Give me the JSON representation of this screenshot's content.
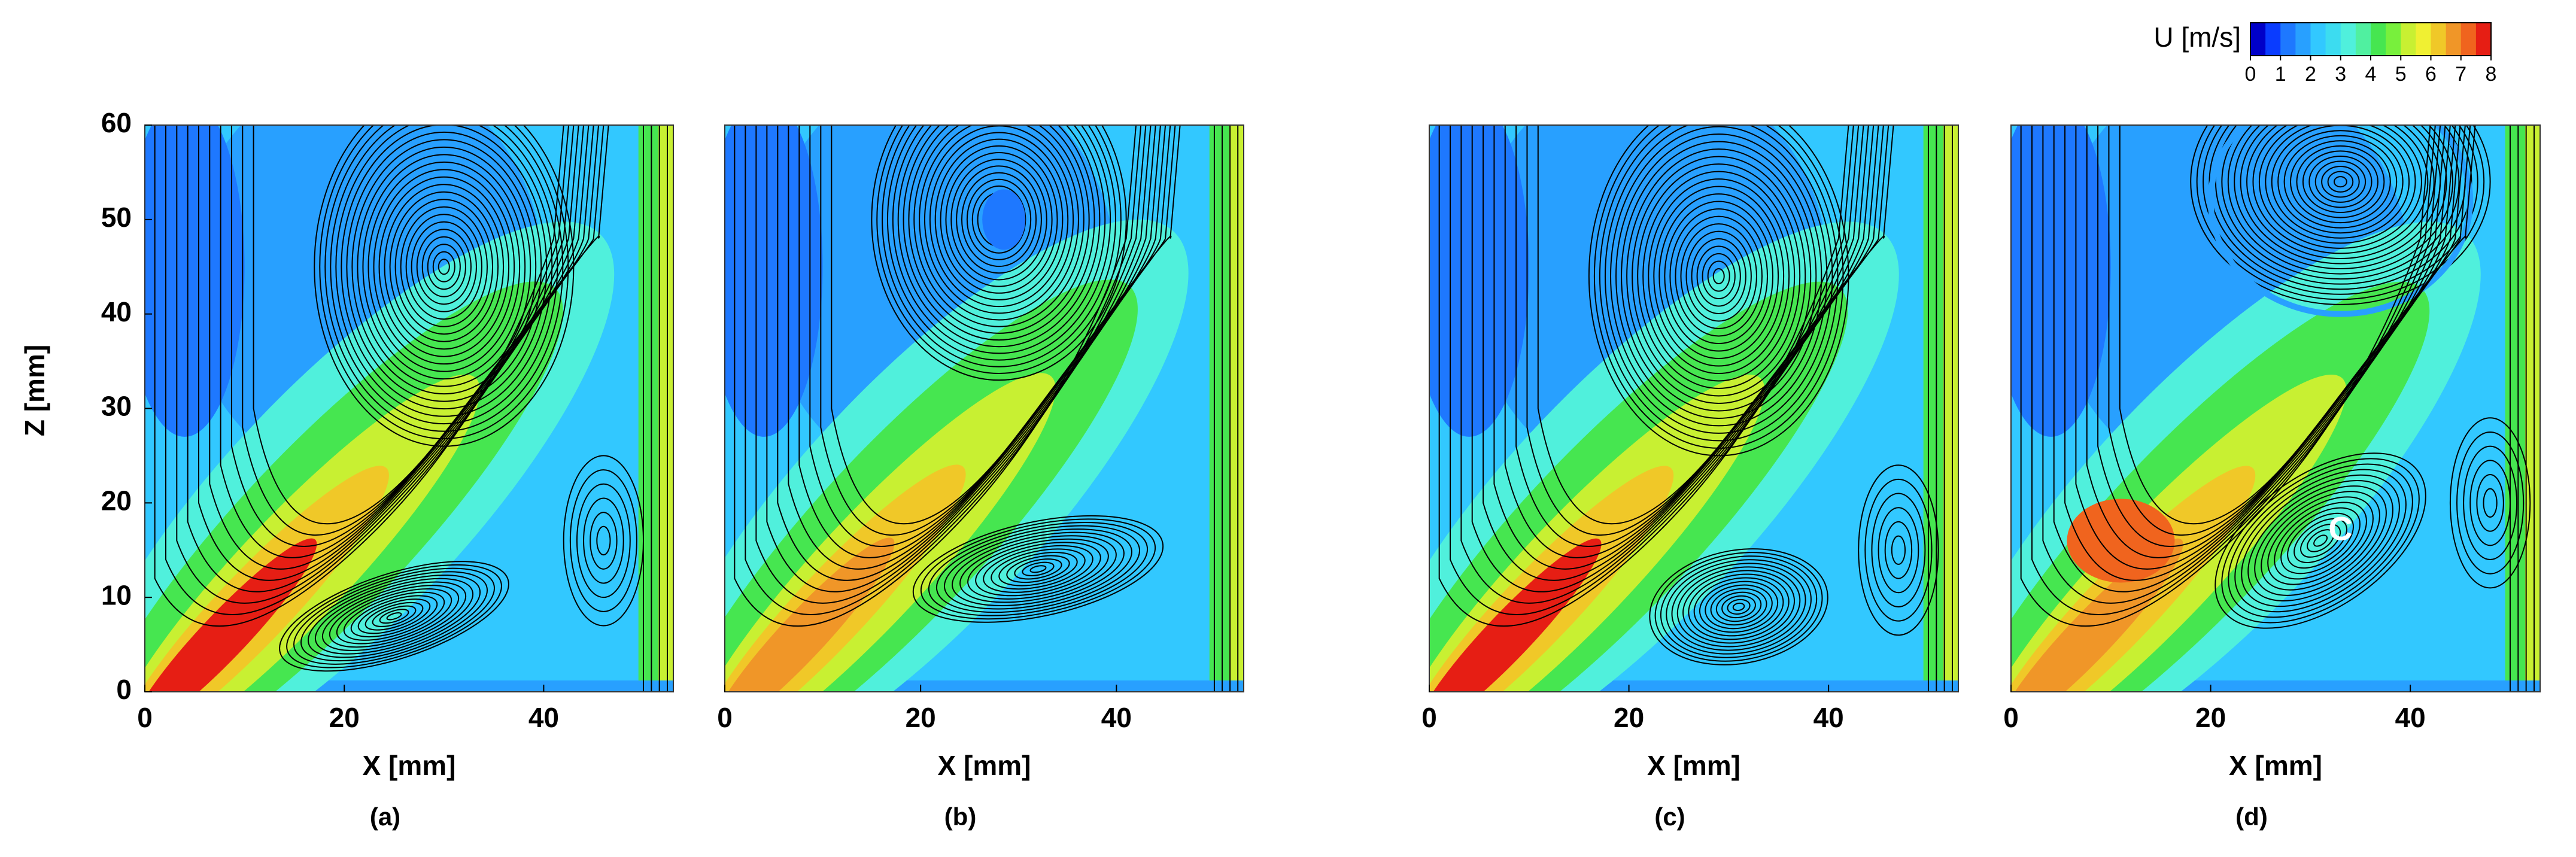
{
  "chart_data": [
    {
      "type": "contour",
      "label": "(a)",
      "xlabel": "X [mm]",
      "ylabel": "Z [mm]",
      "xlim": [
        0,
        53
      ],
      "xticks": [
        0,
        20,
        40
      ],
      "ylim": [
        0,
        60
      ],
      "yticks": [
        0,
        10,
        20,
        30,
        40,
        50,
        60
      ]
    },
    {
      "type": "contour",
      "label": "(b)",
      "xlabel": "X [mm]",
      "xlim": [
        0,
        53
      ],
      "xticks": [
        0,
        20,
        40
      ],
      "ylim": [
        0,
        60
      ]
    },
    {
      "type": "contour",
      "label": "(c)",
      "xlabel": "X [mm]",
      "xlim": [
        0,
        53
      ],
      "xticks": [
        0,
        20,
        40
      ],
      "ylim": [
        0,
        60
      ]
    },
    {
      "type": "contour",
      "label": "(d)",
      "xlabel": "X [mm]",
      "xlim": [
        0,
        53
      ],
      "xticks": [
        0,
        20,
        40
      ],
      "ylim": [
        0,
        60
      ],
      "annotation": "C"
    }
  ],
  "colorbar": {
    "title": "U [m/s]",
    "ticks": [
      0,
      1,
      2,
      3,
      4,
      5,
      6,
      7,
      8
    ],
    "colors": [
      "#0000c8",
      "#0a3cff",
      "#1e78ff",
      "#28a0ff",
      "#32c8ff",
      "#3cdcf0",
      "#50f0dc",
      "#50f0a0",
      "#46e650",
      "#78f03c",
      "#c8f032",
      "#f0f032",
      "#f0c828",
      "#f09628",
      "#f0641e",
      "#e61e14"
    ]
  }
}
